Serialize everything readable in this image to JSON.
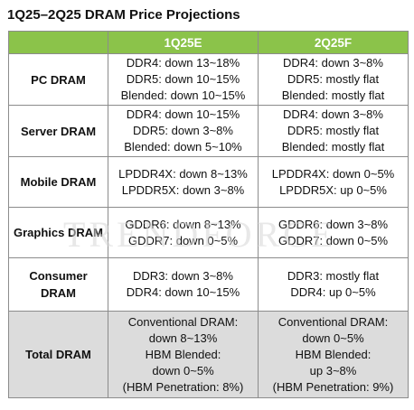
{
  "title": "1Q25–2Q25 DRAM Price Projections",
  "watermark": "TRENDFORCE",
  "header_color": "#8bc34a",
  "total_row_color": "#dcdcdc",
  "columns": [
    "",
    "1Q25E",
    "2Q25F"
  ],
  "rows": [
    {
      "label": [
        "PC DRAM"
      ],
      "q1": [
        "DDR4: down 13~18%",
        "DDR5: down 10~15%",
        "Blended: down 10~15%"
      ],
      "q2": [
        "DDR4: down 3~8%",
        "DDR5: mostly flat",
        "Blended: mostly flat"
      ]
    },
    {
      "label": [
        "Server DRAM"
      ],
      "q1": [
        "DDR4: down 10~15%",
        "DDR5: down 3~8%",
        "Blended: down 5~10%"
      ],
      "q2": [
        "DDR4: down 3~8%",
        "DDR5: mostly flat",
        "Blended: mostly flat"
      ]
    },
    {
      "label": [
        "Mobile DRAM"
      ],
      "q1": [
        "LPDDR4X: down 8~13%",
        "LPDDR5X: down 3~8%"
      ],
      "q2": [
        "LPDDR4X: down 0~5%",
        "LPDDR5X: up 0~5%"
      ]
    },
    {
      "label": [
        "Graphics DRAM"
      ],
      "q1": [
        "GDDR6: down 8~13%",
        "GDDR7: down 0~5%"
      ],
      "q2": [
        "GDDR6: down 3~8%",
        "GDDR7: down 0~5%"
      ]
    },
    {
      "label": [
        "Consumer",
        "DRAM"
      ],
      "q1": [
        "DDR3: down 3~8%",
        "DDR4: down 10~15%"
      ],
      "q2": [
        "DDR3: mostly flat",
        "DDR4: up 0~5%"
      ]
    },
    {
      "label": [
        "Total DRAM"
      ],
      "q1": [
        "Conventional DRAM:",
        "down 8~13%",
        "HBM Blended:",
        "down 0~5%",
        "(HBM Penetration: 8%)"
      ],
      "q2": [
        "Conventional DRAM:",
        "down 0~5%",
        "HBM Blended:",
        "up 3~8%",
        "(HBM Penetration: 9%)"
      ]
    }
  ]
}
